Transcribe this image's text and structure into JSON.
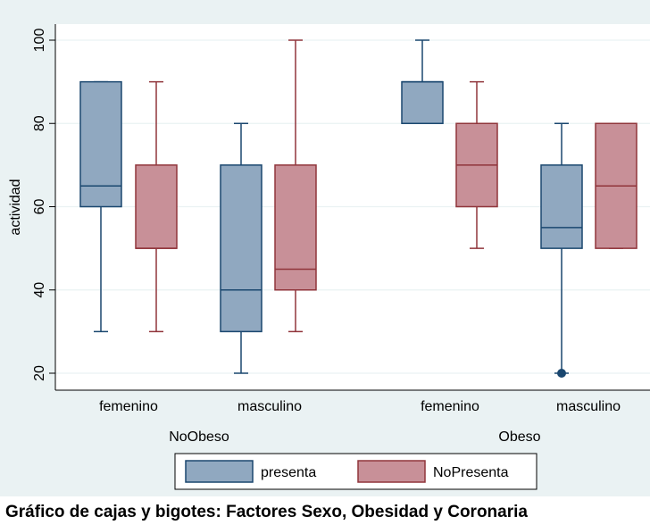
{
  "chart_data": {
    "type": "box",
    "ylabel": "actividad",
    "ylim": [
      15,
      105
    ],
    "yticks": [
      20,
      40,
      60,
      80,
      100
    ],
    "groups": [
      {
        "label": "NoObeso",
        "subgroups": [
          {
            "label": "femenino",
            "boxes": [
              {
                "series": "presenta",
                "min": 30,
                "q1": 60,
                "median": 65,
                "q3": 90,
                "max": 90,
                "outliers": []
              },
              {
                "series": "NoPresenta",
                "min": 30,
                "q1": 50,
                "median": 50,
                "q3": 70,
                "max": 90,
                "outliers": []
              }
            ]
          },
          {
            "label": "masculino",
            "boxes": [
              {
                "series": "presenta",
                "min": 20,
                "q1": 30,
                "median": 40,
                "q3": 70,
                "max": 80,
                "outliers": []
              },
              {
                "series": "NoPresenta",
                "min": 30,
                "q1": 40,
                "median": 45,
                "q3": 70,
                "max": 100,
                "outliers": []
              }
            ]
          }
        ]
      },
      {
        "label": "Obeso",
        "subgroups": [
          {
            "label": "femenino",
            "boxes": [
              {
                "series": "presenta",
                "min": 80,
                "q1": 80,
                "median": 90,
                "q3": 90,
                "max": 100,
                "outliers": []
              },
              {
                "series": "NoPresenta",
                "min": 50,
                "q1": 60,
                "median": 70,
                "q3": 80,
                "max": 90,
                "outliers": []
              }
            ]
          },
          {
            "label": "masculino",
            "boxes": [
              {
                "series": "presenta",
                "min": 20,
                "q1": 50,
                "median": 55,
                "q3": 70,
                "max": 80,
                "outliers": [
                  20
                ]
              },
              {
                "series": "NoPresenta",
                "min": 50,
                "q1": 50,
                "median": 65,
                "q3": 80,
                "max": 80,
                "outliers": []
              }
            ]
          }
        ]
      }
    ],
    "legend": {
      "position": "bottom",
      "entries": [
        {
          "name": "presenta",
          "color": "#90a8c0"
        },
        {
          "name": "NoPresenta",
          "color": "#c89098"
        }
      ]
    },
    "colors": {
      "presenta_stroke": "#1a476f",
      "NoPresenta_stroke": "#90353b",
      "background": "#eaf2f3",
      "grid": "#eaf2f3"
    },
    "grid": true
  },
  "caption": "Gráfico de cajas y bigotes: Factores Sexo, Obesidad y Coronaria"
}
